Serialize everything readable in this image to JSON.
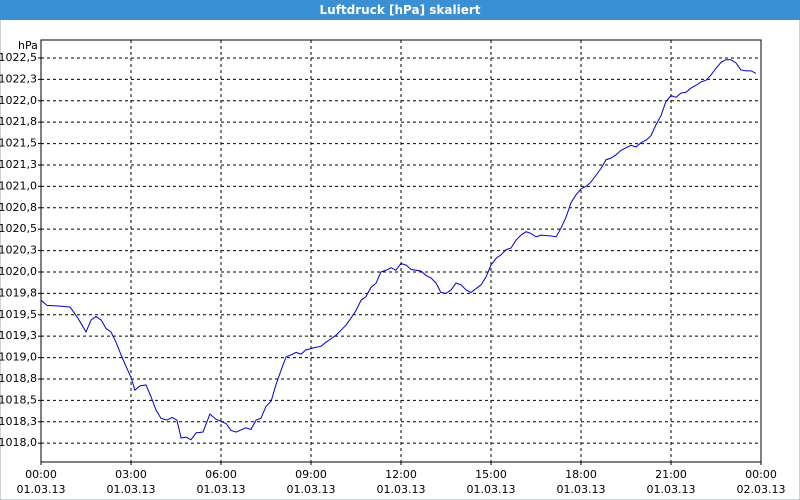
{
  "chart_data": {
    "type": "line",
    "title": "Luftdruck [hPa] skaliert",
    "ylabel": "hPa",
    "color": "#0000cc",
    "grid": true,
    "xlim": [
      0,
      24
    ],
    "ylim": [
      1017.78,
      1022.71
    ],
    "xticks": [
      {
        "value": 0,
        "label": "00:00",
        "date": "01.03.13"
      },
      {
        "value": 3,
        "label": "03:00",
        "date": "01.03.13"
      },
      {
        "value": 6,
        "label": "06:00",
        "date": "01.03.13"
      },
      {
        "value": 9,
        "label": "09:00",
        "date": "01.03.13"
      },
      {
        "value": 12,
        "label": "12:00",
        "date": "01.03.13"
      },
      {
        "value": 15,
        "label": "15:00",
        "date": "01.03.13"
      },
      {
        "value": 18,
        "label": "18:00",
        "date": "01.03.13"
      },
      {
        "value": 21,
        "label": "21:00",
        "date": "01.03.13"
      },
      {
        "value": 24,
        "label": "00:00",
        "date": "02.03.13"
      }
    ],
    "yticks": [
      {
        "value": 1018,
        "label": "1018,0"
      },
      {
        "value": 1018.25,
        "label": "1018,3"
      },
      {
        "value": 1018.5,
        "label": "1018,5"
      },
      {
        "value": 1018.75,
        "label": "1018,8"
      },
      {
        "value": 1019,
        "label": "1019,0"
      },
      {
        "value": 1019.25,
        "label": "1019,3"
      },
      {
        "value": 1019.5,
        "label": "1019,5"
      },
      {
        "value": 1019.75,
        "label": "1019,8"
      },
      {
        "value": 1020,
        "label": "1020,0"
      },
      {
        "value": 1020.25,
        "label": "1020,3"
      },
      {
        "value": 1020.5,
        "label": "1020,5"
      },
      {
        "value": 1020.75,
        "label": "1020,8"
      },
      {
        "value": 1021,
        "label": "1021,0"
      },
      {
        "value": 1021.25,
        "label": "1021,3"
      },
      {
        "value": 1021.5,
        "label": "1021,5"
      },
      {
        "value": 1021.75,
        "label": "1021,8"
      },
      {
        "value": 1022,
        "label": "1022,0"
      },
      {
        "value": 1022.25,
        "label": "1022,3"
      },
      {
        "value": 1022.5,
        "label": "1022,5"
      }
    ],
    "x": [
      0,
      0.2,
      0.7,
      0.97,
      1.23,
      1.5,
      1.67,
      1.83,
      2.0,
      2.17,
      2.33,
      2.5,
      2.67,
      2.83,
      3.0,
      3.13,
      3.3,
      3.5,
      3.67,
      3.83,
      4.0,
      4.2,
      4.37,
      4.53,
      4.67,
      4.83,
      5.0,
      5.17,
      5.4,
      5.63,
      5.83,
      6.17,
      6.33,
      6.5,
      6.83,
      7.0,
      7.17,
      7.33,
      7.5,
      7.67,
      7.83,
      8.0,
      8.17,
      8.33,
      8.5,
      8.67,
      8.83,
      9.17,
      9.33,
      9.5,
      9.67,
      9.83,
      10.0,
      10.17,
      10.33,
      10.5,
      10.67,
      10.83,
      11.0,
      11.17,
      11.33,
      11.5,
      11.67,
      11.83,
      12.0,
      12.17,
      12.33,
      12.67,
      12.83,
      13.0,
      13.17,
      13.33,
      13.5,
      13.67,
      13.83,
      14.0,
      14.17,
      14.33,
      14.67,
      14.83,
      15.0,
      15.17,
      15.33,
      15.5,
      15.67,
      15.83,
      16.0,
      16.17,
      16.33,
      16.5,
      16.67,
      17.0,
      17.17,
      17.33,
      17.5,
      17.67,
      17.83,
      18.0,
      18.17,
      18.33,
      18.5,
      18.67,
      18.83,
      19.0,
      19.17,
      19.33,
      19.5,
      19.67,
      19.83,
      20.0,
      20.17,
      20.33,
      20.5,
      20.67,
      20.83,
      21.0,
      21.17,
      21.33,
      21.5,
      21.67,
      21.83,
      22.0,
      22.17,
      22.33,
      22.5,
      22.67,
      22.83,
      23.0,
      23.17,
      23.33,
      23.5,
      23.67,
      23.83
    ],
    "values": [
      1019.67,
      1019.61,
      1019.6,
      1019.59,
      1019.46,
      1019.3,
      1019.44,
      1019.48,
      1019.44,
      1019.34,
      1019.3,
      1019.18,
      1019.03,
      1018.9,
      1018.77,
      1018.62,
      1018.67,
      1018.68,
      1018.54,
      1018.39,
      1018.29,
      1018.27,
      1018.3,
      1018.27,
      1018.06,
      1018.07,
      1018.04,
      1018.12,
      1018.13,
      1018.34,
      1018.28,
      1018.23,
      1018.15,
      1018.13,
      1018.18,
      1018.16,
      1018.27,
      1018.29,
      1018.43,
      1018.49,
      1018.68,
      1018.85,
      1019.01,
      1019.03,
      1019.06,
      1019.04,
      1019.09,
      1019.12,
      1019.13,
      1019.18,
      1019.22,
      1019.26,
      1019.32,
      1019.38,
      1019.46,
      1019.55,
      1019.67,
      1019.71,
      1019.82,
      1019.87,
      1020.0,
      1020.02,
      1020.05,
      1020.02,
      1020.1,
      1020.08,
      1020.03,
      1020.01,
      1019.96,
      1019.93,
      1019.87,
      1019.76,
      1019.75,
      1019.79,
      1019.87,
      1019.85,
      1019.79,
      1019.76,
      1019.85,
      1019.94,
      1020.08,
      1020.16,
      1020.2,
      1020.26,
      1020.28,
      1020.37,
      1020.43,
      1020.47,
      1020.45,
      1020.41,
      1020.43,
      1020.42,
      1020.41,
      1020.51,
      1020.64,
      1020.81,
      1020.9,
      1020.97,
      1021.0,
      1021.05,
      1021.13,
      1021.21,
      1021.31,
      1021.33,
      1021.37,
      1021.42,
      1021.45,
      1021.48,
      1021.46,
      1021.51,
      1021.54,
      1021.59,
      1021.72,
      1021.83,
      1021.99,
      1022.06,
      1022.04,
      1022.09,
      1022.1,
      1022.15,
      1022.18,
      1022.22,
      1022.24,
      1022.3,
      1022.38,
      1022.45,
      1022.48,
      1022.48,
      1022.44,
      1022.36,
      1022.35,
      1022.35,
      1022.32
    ]
  }
}
